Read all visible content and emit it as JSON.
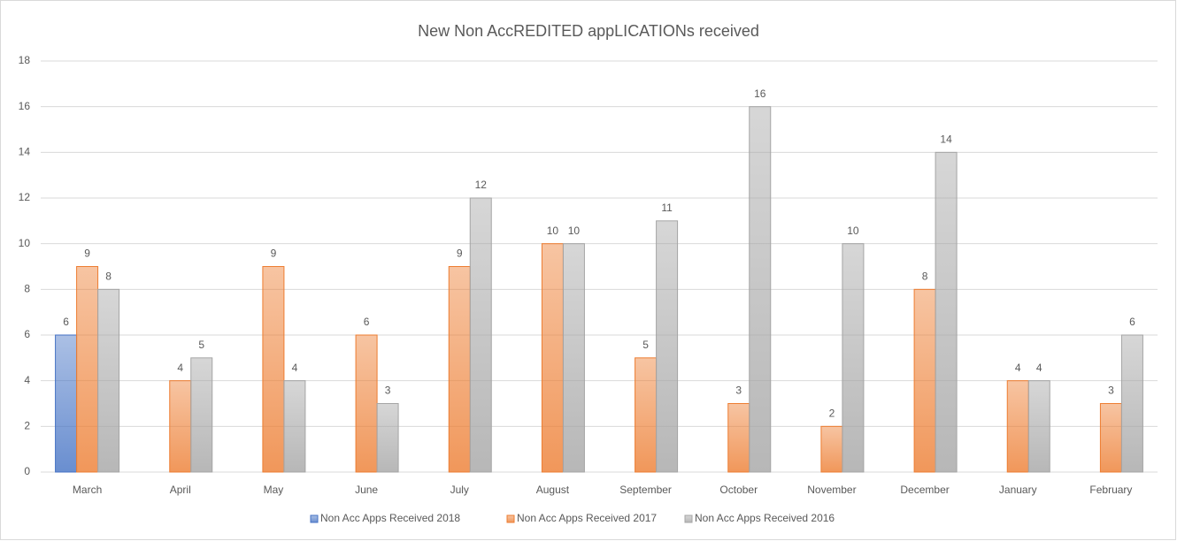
{
  "chart_data": {
    "type": "bar",
    "title": "New Non AccREDITED appLICATIONs received",
    "categories": [
      "March",
      "April",
      "May",
      "June",
      "July",
      "August",
      "September",
      "October",
      "November",
      "December",
      "January",
      "February"
    ],
    "series": [
      {
        "name": "Non Acc Apps Received 2018",
        "color": "#4472c4",
        "values": [
          6,
          null,
          null,
          null,
          null,
          null,
          null,
          null,
          null,
          null,
          null,
          null
        ]
      },
      {
        "name": "Non Acc Apps Received 2017",
        "color": "#ed7d31",
        "values": [
          9,
          4,
          9,
          6,
          9,
          10,
          5,
          3,
          2,
          8,
          4,
          3
        ]
      },
      {
        "name": "Non Acc Apps Received 2016",
        "color": "#a5a5a5",
        "values": [
          8,
          5,
          4,
          3,
          12,
          10,
          11,
          16,
          10,
          14,
          4,
          6
        ]
      }
    ],
    "ylim": [
      0,
      18
    ],
    "yticks": [
      0,
      2,
      4,
      6,
      8,
      10,
      12,
      14,
      16,
      18
    ],
    "grid": true,
    "legend": "bottom"
  }
}
